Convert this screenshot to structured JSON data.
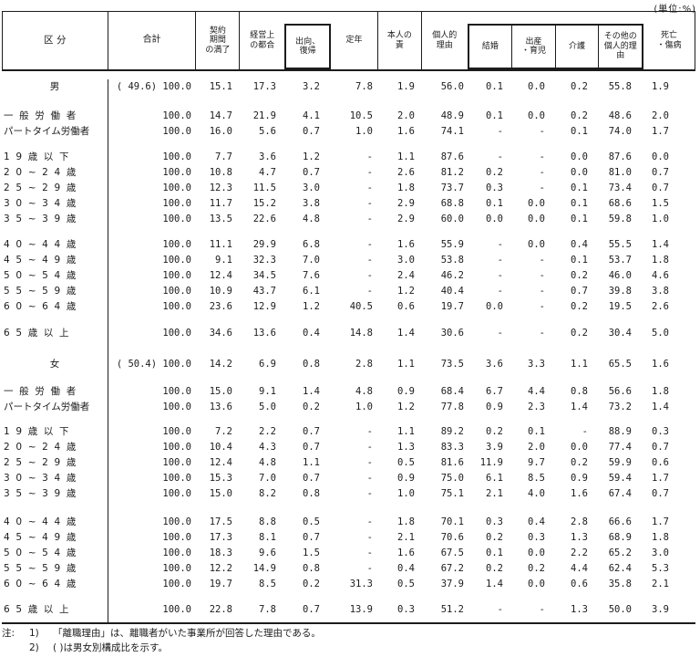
{
  "unit_label": "(単位:%)",
  "table": {
    "header": {
      "category_label": "区   分",
      "columns": [
        {
          "label": "合計"
        },
        {
          "label": "契約\n期間\nの満了"
        },
        {
          "label": "経営上\nの都合"
        },
        {
          "label": "出向、\n復帰"
        },
        {
          "label": "定年"
        },
        {
          "label": "本人の\n責"
        },
        {
          "label": "個人的\n理由"
        },
        {
          "label": "結婚"
        },
        {
          "label": "出産\n・育児"
        },
        {
          "label": "介護"
        },
        {
          "label": "その他の\n個人的理\n由"
        },
        {
          "label": "死亡\n・傷病"
        }
      ]
    },
    "rows": [
      {
        "label": "男",
        "center": true,
        "gap": 9,
        "prefix": "( 49.6)",
        "values": [
          "100.0",
          "15.1",
          "17.3",
          "3.2",
          "7.8",
          "1.9",
          "56.0",
          "0.1",
          "0.0",
          "0.2",
          "55.8",
          "1.9"
        ]
      },
      {
        "label": "一  般  労  働  者",
        "gap": 15,
        "values": [
          "100.0",
          "14.7",
          "21.9",
          "4.1",
          "10.5",
          "2.0",
          "48.9",
          "0.1",
          "0.0",
          "0.2",
          "48.6",
          "2.0"
        ]
      },
      {
        "label": "パートタイム労働者",
        "gap": 0,
        "values": [
          "100.0",
          "16.0",
          "5.6",
          "0.7",
          "1.0",
          "1.6",
          "74.1",
          "-",
          "-",
          "0.1",
          "74.0",
          "1.7"
        ]
      },
      {
        "label": "1  9  歳  以  下",
        "gap": 11,
        "values": [
          "100.0",
          "7.7",
          "3.6",
          "1.2",
          "-",
          "1.1",
          "87.6",
          "-",
          "-",
          "0.0",
          "87.6",
          "0.0"
        ]
      },
      {
        "label": "2  0  ~  2  4  歳",
        "gap": 0,
        "values": [
          "100.0",
          "10.8",
          "4.7",
          "0.7",
          "-",
          "2.6",
          "81.2",
          "0.2",
          "-",
          "0.0",
          "81.0",
          "0.7"
        ]
      },
      {
        "label": "2  5  ~  2  9  歳",
        "gap": 0,
        "values": [
          "100.0",
          "12.3",
          "11.5",
          "3.0",
          "-",
          "1.8",
          "73.7",
          "0.3",
          "-",
          "0.1",
          "73.4",
          "0.7"
        ]
      },
      {
        "label": "3  0  ~  3  4  歳",
        "gap": 0,
        "values": [
          "100.0",
          "11.7",
          "15.2",
          "3.8",
          "-",
          "2.9",
          "68.8",
          "0.1",
          "0.0",
          "0.1",
          "68.6",
          "1.5"
        ]
      },
      {
        "label": "3  5  ~  3  9  歳",
        "gap": 0,
        "values": [
          "100.0",
          "13.5",
          "22.6",
          "4.8",
          "-",
          "2.9",
          "60.0",
          "0.0",
          "0.0",
          "0.1",
          "59.8",
          "1.0"
        ]
      },
      {
        "label": "4  0  ~  4  4  歳",
        "gap": 11,
        "values": [
          "100.0",
          "11.1",
          "29.9",
          "6.8",
          "-",
          "1.6",
          "55.9",
          "-",
          "0.0",
          "0.4",
          "55.5",
          "1.4"
        ]
      },
      {
        "label": "4  5  ~  4  9  歳",
        "gap": 0,
        "values": [
          "100.0",
          "9.1",
          "32.3",
          "7.0",
          "-",
          "3.0",
          "53.8",
          "-",
          "-",
          "0.1",
          "53.7",
          "1.8"
        ]
      },
      {
        "label": "5  0  ~  5  4  歳",
        "gap": 0,
        "values": [
          "100.0",
          "12.4",
          "34.5",
          "7.6",
          "-",
          "2.4",
          "46.2",
          "-",
          "-",
          "0.2",
          "46.0",
          "4.6"
        ]
      },
      {
        "label": "5  5  ~  5  9  歳",
        "gap": 0,
        "values": [
          "100.0",
          "10.9",
          "43.7",
          "6.1",
          "-",
          "1.2",
          "40.4",
          "-",
          "-",
          "0.7",
          "39.8",
          "3.8"
        ]
      },
      {
        "label": "6  0  ~  6  4  歳",
        "gap": 0,
        "values": [
          "100.0",
          "23.6",
          "12.9",
          "1.2",
          "40.5",
          "0.6",
          "19.7",
          "0.0",
          "-",
          "0.2",
          "19.5",
          "2.6"
        ]
      },
      {
        "label": "6  5  歳  以  上",
        "gap": 12,
        "values": [
          "100.0",
          "34.6",
          "13.6",
          "0.4",
          "14.8",
          "1.4",
          "30.6",
          "-",
          "-",
          "0.2",
          "30.4",
          "5.0"
        ]
      },
      {
        "label": "女",
        "center": true,
        "gap": 17,
        "prefix": "( 50.4)",
        "values": [
          "100.0",
          "14.2",
          "6.9",
          "0.8",
          "2.8",
          "1.1",
          "73.5",
          "3.6",
          "3.3",
          "1.1",
          "65.5",
          "1.6"
        ]
      },
      {
        "label": "一  般  労  働  者",
        "gap": 13,
        "values": [
          "100.0",
          "15.0",
          "9.1",
          "1.4",
          "4.8",
          "0.9",
          "68.4",
          "6.7",
          "4.4",
          "0.8",
          "56.6",
          "1.8"
        ]
      },
      {
        "label": "パートタイム労働者",
        "gap": 0,
        "values": [
          "100.0",
          "13.6",
          "5.0",
          "0.2",
          "1.0",
          "1.2",
          "77.8",
          "0.9",
          "2.3",
          "1.4",
          "73.2",
          "1.4"
        ]
      },
      {
        "label": "1  9  歳  以  下",
        "gap": 10,
        "values": [
          "100.0",
          "7.2",
          "2.2",
          "0.7",
          "-",
          "1.1",
          "89.2",
          "0.2",
          "0.1",
          "-",
          "88.9",
          "0.3"
        ]
      },
      {
        "label": "2  0  ~  2  4  歳",
        "gap": 0,
        "values": [
          "100.0",
          "10.4",
          "4.3",
          "0.7",
          "-",
          "1.3",
          "83.3",
          "3.9",
          "2.0",
          "0.0",
          "77.4",
          "0.7"
        ]
      },
      {
        "label": "2  5  ~  2  9  歳",
        "gap": 0,
        "values": [
          "100.0",
          "12.4",
          "4.8",
          "1.1",
          "-",
          "0.5",
          "81.6",
          "11.9",
          "9.7",
          "0.2",
          "59.9",
          "0.6"
        ]
      },
      {
        "label": "3  0  ~  3  4  歳",
        "gap": 0,
        "values": [
          "100.0",
          "15.3",
          "7.0",
          "0.7",
          "-",
          "0.9",
          "75.0",
          "6.1",
          "8.5",
          "0.9",
          "59.4",
          "1.7"
        ]
      },
      {
        "label": "3  5  ~  3  9  歳",
        "gap": 0,
        "values": [
          "100.0",
          "15.0",
          "8.2",
          "0.8",
          "-",
          "1.0",
          "75.1",
          "2.1",
          "4.0",
          "1.6",
          "67.4",
          "0.7"
        ]
      },
      {
        "label": "4  0  ~  4  4  歳",
        "gap": 14,
        "values": [
          "100.0",
          "17.5",
          "8.8",
          "0.5",
          "-",
          "1.8",
          "70.1",
          "0.3",
          "0.4",
          "2.8",
          "66.6",
          "1.7"
        ]
      },
      {
        "label": "4  5  ~  4  9  歳",
        "gap": 0,
        "values": [
          "100.0",
          "17.3",
          "8.1",
          "0.7",
          "-",
          "2.1",
          "70.6",
          "0.2",
          "0.3",
          "1.3",
          "68.9",
          "1.8"
        ]
      },
      {
        "label": "5  0  ~  5  4  歳",
        "gap": 0,
        "values": [
          "100.0",
          "18.3",
          "9.6",
          "1.5",
          "-",
          "1.6",
          "67.5",
          "0.1",
          "0.0",
          "2.2",
          "65.2",
          "3.0"
        ]
      },
      {
        "label": "5  5  ~  5  9  歳",
        "gap": 0,
        "values": [
          "100.0",
          "12.2",
          "14.9",
          "0.8",
          "-",
          "0.4",
          "67.2",
          "0.2",
          "0.2",
          "4.4",
          "62.4",
          "5.3"
        ]
      },
      {
        "label": "6  0  ~  6  4  歳",
        "gap": 0,
        "values": [
          "100.0",
          "19.7",
          "8.5",
          "0.2",
          "31.3",
          "0.5",
          "37.9",
          "1.4",
          "0.0",
          "0.6",
          "35.8",
          "2.1"
        ]
      },
      {
        "label": "6  5  歳  以  上",
        "gap": 11,
        "values": [
          "100.0",
          "22.8",
          "7.8",
          "0.7",
          "13.9",
          "0.3",
          "51.2",
          "-",
          "-",
          "1.3",
          "50.0",
          "3.9"
        ]
      }
    ]
  },
  "notes": {
    "prefix": "注:",
    "items": [
      {
        "num": "1)",
        "text": "「離職理由」は、離職者がいた事業所が回答した理由である。"
      },
      {
        "num": "2)",
        "text": "( )は男女別構成比を示す。"
      }
    ]
  }
}
